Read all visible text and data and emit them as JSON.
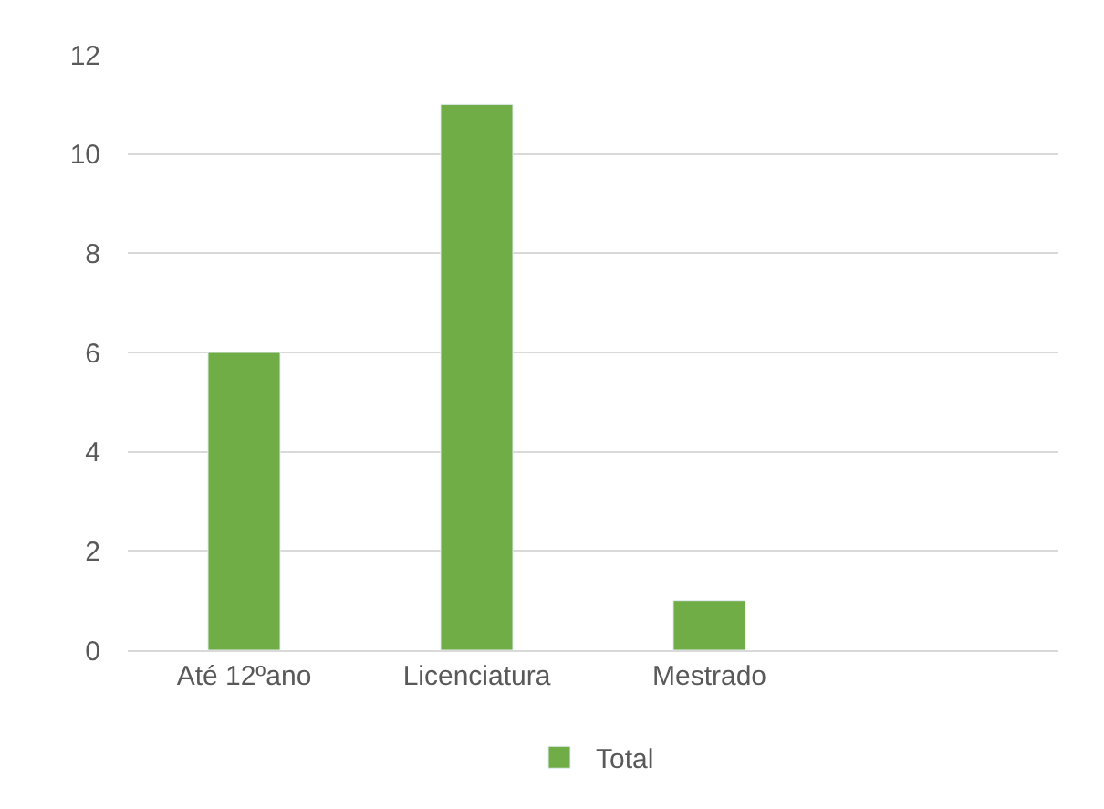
{
  "chart_data": {
    "type": "bar",
    "categories": [
      "Até 12ºano",
      "Licenciatura",
      "Mestrado",
      null
    ],
    "series": [
      {
        "name": "Total",
        "color": "#70ad47",
        "values": [
          6,
          11,
          1,
          null
        ]
      }
    ],
    "ylim": [
      0,
      12
    ],
    "yticks": [
      0,
      2,
      4,
      6,
      8,
      10,
      12
    ],
    "grid": "y",
    "legend": "bottom"
  }
}
